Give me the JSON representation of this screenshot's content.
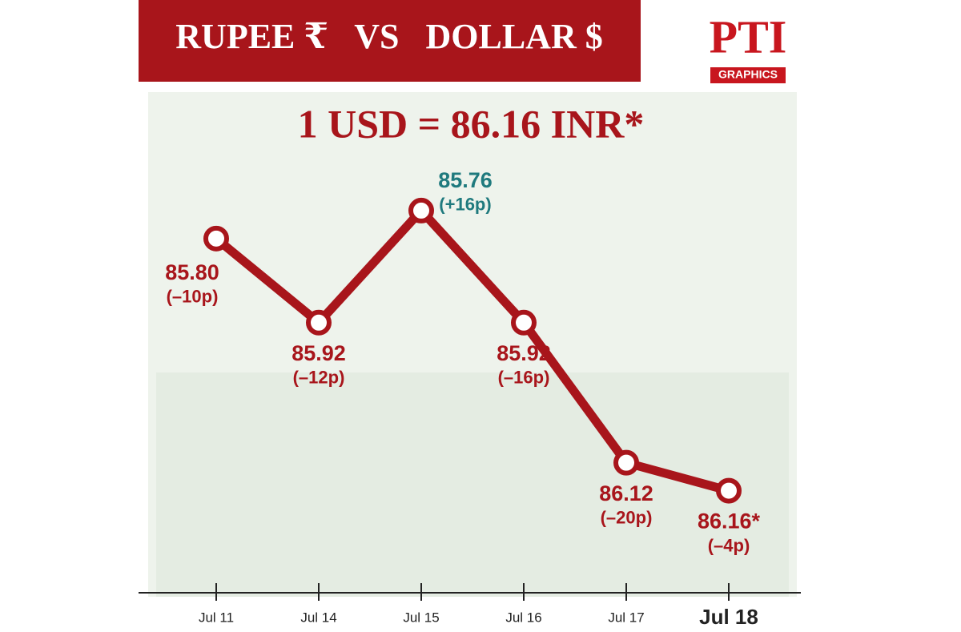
{
  "chart_data": {
    "type": "line",
    "title": "RUPEE ₹   VS   DOLLAR $",
    "subtitle": "1 USD = 86.16 INR*",
    "logo": "PTI",
    "logo_tag": "GRAPHICS",
    "categories": [
      "Jul 11",
      "Jul 14",
      "Jul 15",
      "Jul 16",
      "Jul 17",
      "Jul 18"
    ],
    "values": [
      85.8,
      85.92,
      85.76,
      85.92,
      86.12,
      86.16
    ],
    "value_labels": [
      "85.80",
      "85.92",
      "85.76",
      "85.92",
      "86.12",
      "86.16*"
    ],
    "changes": [
      "(–10p)",
      "(–12p)",
      "(+16p)",
      "(–16p)",
      "(–20p)",
      "(–4p)"
    ],
    "label_colors": [
      "#a8151b",
      "#a8151b",
      "#1f7a7e",
      "#a8151b",
      "#a8151b",
      "#a8151b"
    ],
    "color": "#a8151b",
    "ylim": [
      86.3,
      85.6
    ]
  }
}
